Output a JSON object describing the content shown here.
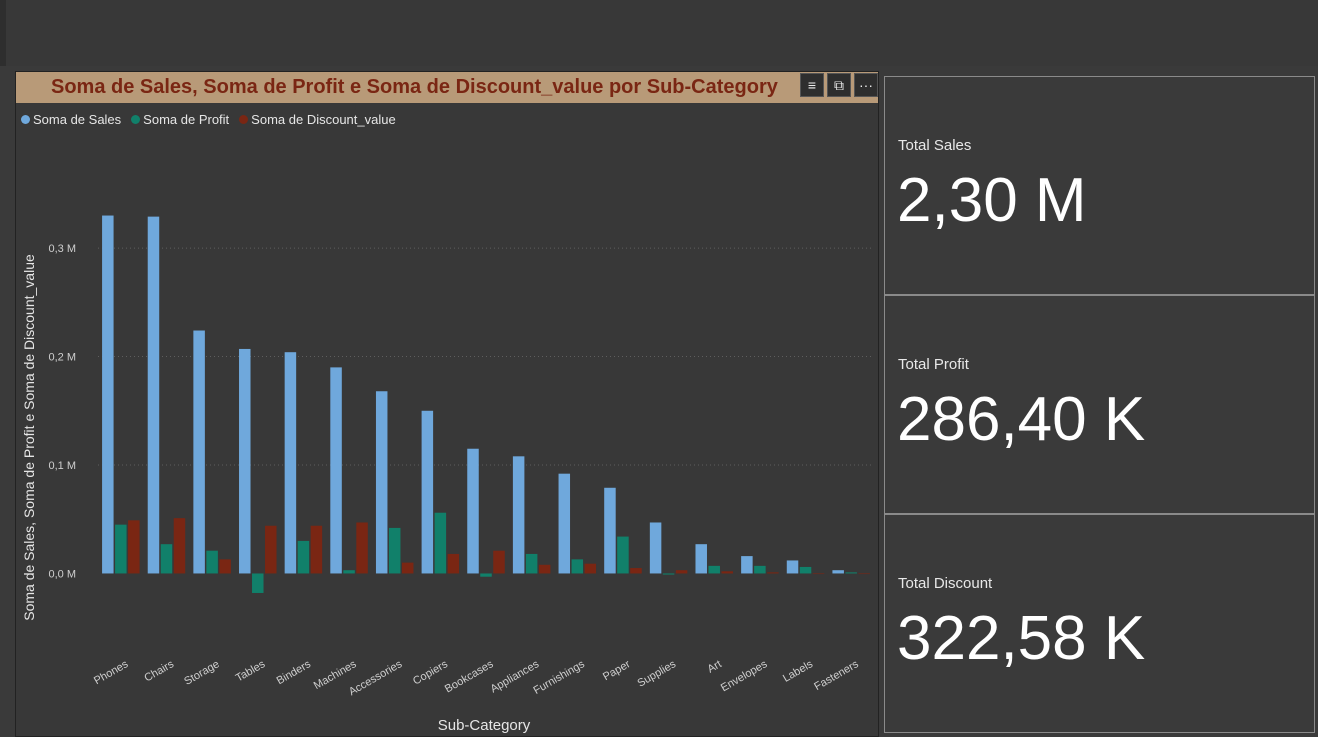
{
  "chart": {
    "title": "Soma de Sales, Soma de Profit e Soma de Discount_value por Sub-Category",
    "toolbar": {
      "filter_icon": "filter-icon",
      "focus_icon": "focus-mode-icon",
      "more_icon": "more-options-icon"
    }
  },
  "chart_data": {
    "type": "bar",
    "title": "Soma de Sales, Soma de Profit e Soma de Discount_value por Sub-Category",
    "xlabel": "Sub-Category",
    "ylabel": "Soma de Sales, Soma de Profit e Soma de Discount_value",
    "ylim": [
      -0.03,
      0.36
    ],
    "yticks": [
      0.0,
      0.1,
      0.2,
      0.3
    ],
    "ytick_labels": [
      "0,0 M",
      "0,1 M",
      "0,2 M",
      "0,3 M"
    ],
    "grid": true,
    "legend_position": "top-left",
    "categories": [
      "Phones",
      "Chairs",
      "Storage",
      "Tables",
      "Binders",
      "Machines",
      "Accessories",
      "Copiers",
      "Bookcases",
      "Appliances",
      "Furnishings",
      "Paper",
      "Supplies",
      "Art",
      "Envelopes",
      "Labels",
      "Fasteners"
    ],
    "series": [
      {
        "name": "Soma de Sales",
        "color": "#6fa8dc",
        "values": [
          0.33,
          0.329,
          0.224,
          0.207,
          0.204,
          0.19,
          0.168,
          0.15,
          0.115,
          0.108,
          0.092,
          0.079,
          0.047,
          0.027,
          0.016,
          0.012,
          0.003
        ]
      },
      {
        "name": "Soma de Profit",
        "color": "#11806a",
        "values": [
          0.045,
          0.027,
          0.021,
          -0.018,
          0.03,
          0.003,
          0.042,
          0.056,
          -0.003,
          0.018,
          0.013,
          0.034,
          -0.001,
          0.007,
          0.007,
          0.006,
          0.001
        ]
      },
      {
        "name": "Soma de Discount_value",
        "color": "#7a2613",
        "values": [
          0.049,
          0.051,
          0.013,
          0.044,
          0.044,
          0.047,
          0.01,
          0.018,
          0.021,
          0.008,
          0.009,
          0.005,
          0.003,
          0.002,
          0.001,
          0.0,
          0.0
        ]
      }
    ]
  },
  "cards": [
    {
      "label": "Total Sales",
      "value": "2,30 M"
    },
    {
      "label": "Total Profit",
      "value": "286,40 K"
    },
    {
      "label": "Total Discount",
      "value": "322,58 K"
    }
  ]
}
